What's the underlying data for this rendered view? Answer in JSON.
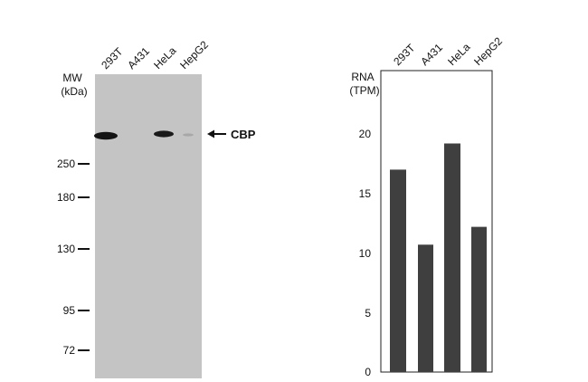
{
  "blot": {
    "mw_label_line1": "MW",
    "mw_label_line2": "(kDa)",
    "lanes": [
      "293T",
      "A431",
      "HeLa",
      "HepG2"
    ],
    "markers": [
      "250",
      "180",
      "130",
      "95",
      "72"
    ],
    "target_label": "CBP",
    "membrane_color": "#c4c4c4",
    "band_color": "#141414"
  },
  "chart_data": {
    "type": "bar",
    "categories": [
      "293T",
      "A431",
      "HeLa",
      "HepG2"
    ],
    "values": [
      17.0,
      10.7,
      19.2,
      12.2
    ],
    "title": "",
    "xlabel": "",
    "ylabel_line1": "RNA",
    "ylabel_line2": "(TPM)",
    "ylim": [
      0,
      21
    ],
    "yticks": [
      "0",
      "5",
      "10",
      "15",
      "20"
    ],
    "bar_color": "#3f3f3f",
    "grid": false
  }
}
